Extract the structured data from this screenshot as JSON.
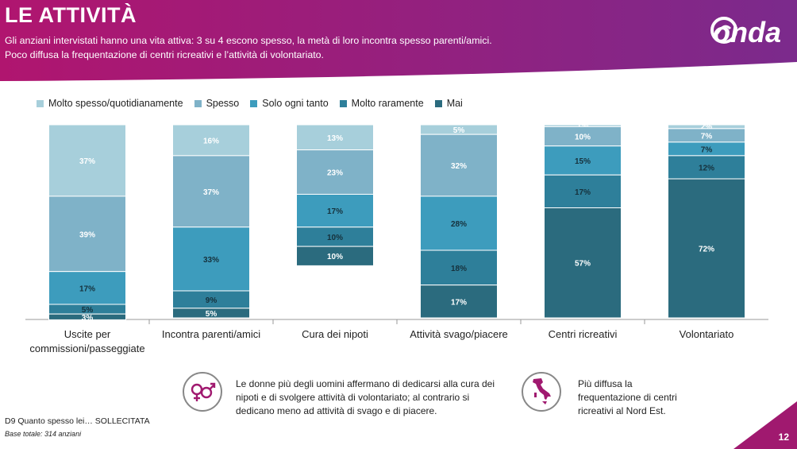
{
  "header": {
    "title": "LE ATTIVITÀ",
    "subtitle_line1": "Gli anziani intervistati hanno una vita attiva: 3 su 4 escono spesso, la metà di loro incontra  spesso parenti/amici.",
    "subtitle_line2": "Poco diffusa la frequentazione di centri ricreativi e l’attività di volontariato.",
    "brand": "onda"
  },
  "colors": {
    "header_left": "#b0156f",
    "header_right": "#7b2a8c",
    "series": [
      "#a7cfdb",
      "#7fb2c8",
      "#3d9cbd",
      "#2e7f9a",
      "#2b6b7e"
    ]
  },
  "chart_data": {
    "type": "bar",
    "stacked": true,
    "orientation": "vertical",
    "categories": [
      "Uscite per commissioni/passeggiate",
      "Incontra parenti/amici",
      "Cura dei nipoti",
      "Attività svago/piacere",
      "Centri ricreativi",
      "Volontariato"
    ],
    "category_lines": [
      [
        "Uscite per",
        "commissioni/passeggiate"
      ],
      [
        "Incontra parenti/amici"
      ],
      [
        "Cura dei nipoti"
      ],
      [
        "Attività svago/piacere"
      ],
      [
        "Centri ricreativi"
      ],
      [
        "Volontariato"
      ]
    ],
    "series": [
      {
        "name": "Molto spesso/quotidianamente",
        "values": [
          37,
          16,
          13,
          5,
          1,
          2
        ]
      },
      {
        "name": "Spesso",
        "values": [
          39,
          37,
          23,
          32,
          10,
          7
        ]
      },
      {
        "name": "Solo ogni tanto",
        "values": [
          17,
          33,
          17,
          28,
          15,
          7
        ]
      },
      {
        "name": "Molto raramente",
        "values": [
          5,
          9,
          10,
          18,
          17,
          12
        ]
      },
      {
        "name": "Mai",
        "values": [
          3,
          5,
          10,
          17,
          57,
          72
        ]
      }
    ],
    "value_suffix": "%",
    "ylim": [
      0,
      100
    ],
    "legend_position": "top",
    "grid": false
  },
  "notes": {
    "gender_text_lines": [
      "Le donne più degli uomini affermano di dedicarsi alla cura dei",
      "nipoti e di svolgere attività di volontariato; al contrario si",
      "dedicano meno ad attività di svago e di piacere."
    ],
    "region_text_lines": [
      "Più diffusa la",
      "frequentazione di centri",
      "ricreativi al Nord Est."
    ],
    "gender_icon": "gender-symbols-icon",
    "region_icon": "italy-map-icon"
  },
  "footer": {
    "question": "D9 Quanto spesso lei… SOLLECITATA",
    "base": "Base totale: 314 anziani",
    "page": "12"
  }
}
